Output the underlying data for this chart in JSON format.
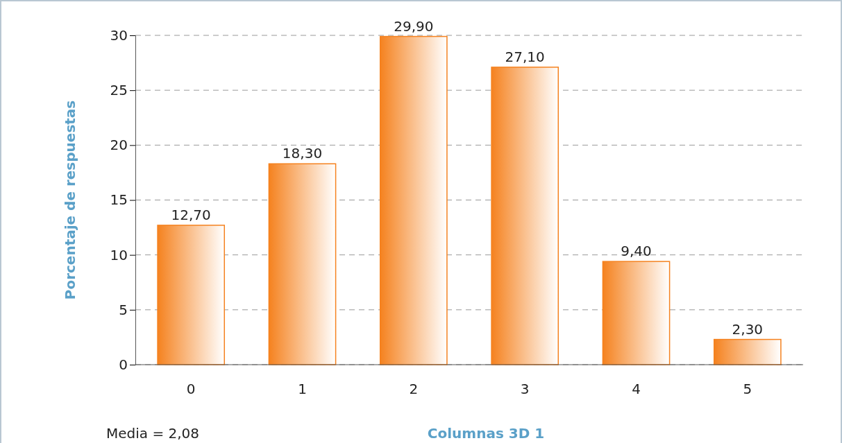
{
  "chart_data": {
    "type": "bar",
    "xlabel": "Columnas 3D 1",
    "ylabel": "Porcentaje de respuestas",
    "categories": [
      "0",
      "1",
      "2",
      "3",
      "4",
      "5"
    ],
    "values": [
      12.7,
      18.3,
      29.9,
      27.1,
      9.4,
      2.3
    ],
    "value_labels": [
      "12,70",
      "18,30",
      "29,90",
      "27,10",
      "9,40",
      "2,30"
    ],
    "color": "#f5821f",
    "ylim": [
      0,
      30
    ],
    "yticks": [
      0,
      5,
      10,
      15,
      20,
      25,
      30
    ],
    "grid": "y",
    "annotations": [
      "Media = 2,08"
    ]
  }
}
